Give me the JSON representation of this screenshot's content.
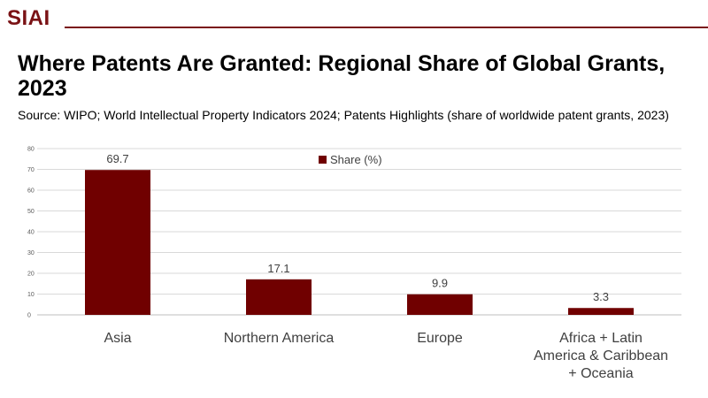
{
  "header": {
    "logo_text": "SIAI"
  },
  "chart_data": {
    "type": "bar",
    "title": "Where Patents Are Granted: Regional Share of Global Grants, 2023",
    "subtitle": "Source: WIPO; World Intellectual Property Indicators 2024; Patents Highlights (share of worldwide patent grants, 2023)",
    "categories": [
      [
        "Asia"
      ],
      [
        "Northern America"
      ],
      [
        "Europe"
      ],
      [
        "Africa + Latin",
        "America & Caribbean",
        "+ Oceania"
      ]
    ],
    "series": [
      {
        "name": "Share (%)",
        "values": [
          69.7,
          17.1,
          9.9,
          3.3
        ]
      }
    ],
    "data_labels": [
      "69.7",
      "17.1",
      "9.9",
      "3.3"
    ],
    "yticks": [
      "0",
      "10",
      "20",
      "30",
      "40",
      "50",
      "60",
      "70",
      "80"
    ],
    "ylim": [
      0,
      80
    ],
    "grid": true,
    "legend_position": "top-center",
    "bar_color": "#700000",
    "grid_color": "#d9d9d9",
    "axis_color": "#bfbfbf"
  }
}
